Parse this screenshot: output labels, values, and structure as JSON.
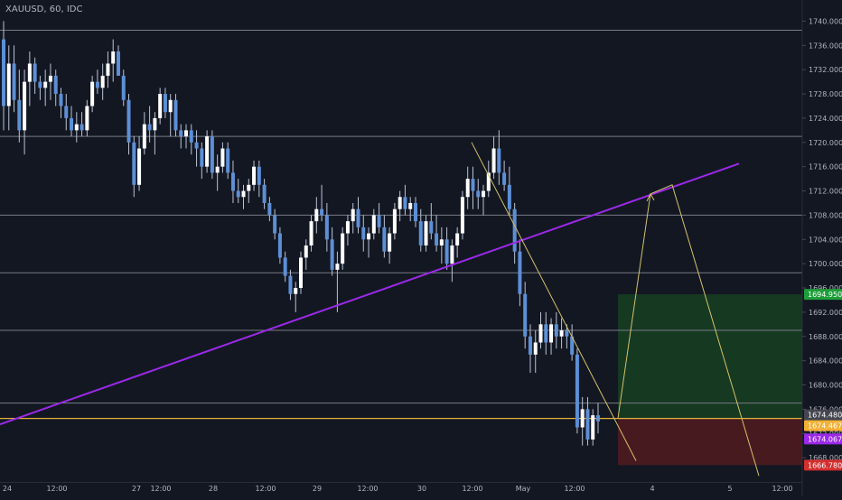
{
  "header": {
    "symbol": "XAUUSD, 60, IDC"
  },
  "colors": {
    "background": "#131722",
    "bull_candle": "#ffffff",
    "bear_candle": "#5d8fd6",
    "wick": "#b9c2d6",
    "trendline": "#9b29e8",
    "thin_line": "#d4c26a",
    "hline": "#787b86",
    "hline_orange": "#e3b23c",
    "long_target_zone": "#163b22",
    "long_stop_zone": "#4a1a21",
    "label_green": "#1e9e3a",
    "label_red": "#d32f2f",
    "label_purple": "#9b29e8",
    "label_orange": "#f2b035",
    "label_grey": "#43464f"
  },
  "chart_data": {
    "type": "candlestick",
    "symbol": "XAUUSD",
    "interval": "60",
    "source": "IDC",
    "ylim": [
      1664,
      1742
    ],
    "y_ticks": [
      "1740.0000",
      "1736.0000",
      "1732.0000",
      "1728.0000",
      "1724.0000",
      "1720.0000",
      "1716.0000",
      "1712.0000",
      "1708.0000",
      "1704.0000",
      "1700.0000",
      "1696.0000",
      "1692.0000",
      "1688.0000",
      "1684.0000",
      "1680.0000",
      "1676.0000",
      "1672.0000",
      "1668.0000"
    ],
    "x_ticks": [
      "24",
      "12:00",
      "27",
      "12:00",
      "28",
      "12:00",
      "29",
      "12:00",
      "30",
      "12:00",
      "May",
      "12:00",
      "4",
      "5",
      "12:00"
    ],
    "candles": [
      [
        1737,
        1740,
        1722,
        1726
      ],
      [
        1726,
        1736,
        1722,
        1733
      ],
      [
        1733,
        1736,
        1725,
        1727
      ],
      [
        1727,
        1732,
        1720,
        1722
      ],
      [
        1722,
        1732,
        1718,
        1730
      ],
      [
        1730,
        1735,
        1726,
        1733
      ],
      [
        1733,
        1734,
        1728,
        1730
      ],
      [
        1730,
        1731,
        1727,
        1729
      ],
      [
        1729,
        1732,
        1726,
        1730
      ],
      [
        1730,
        1733,
        1727,
        1731
      ],
      [
        1731,
        1732,
        1726,
        1728
      ],
      [
        1728,
        1729,
        1724,
        1726
      ],
      [
        1726,
        1728,
        1722,
        1724
      ],
      [
        1724,
        1726,
        1721,
        1722
      ],
      [
        1722,
        1725,
        1720,
        1723
      ],
      [
        1723,
        1725,
        1721,
        1722
      ],
      [
        1722,
        1727,
        1721,
        1726
      ],
      [
        1726,
        1731,
        1725,
        1730
      ],
      [
        1730,
        1732,
        1728,
        1729
      ],
      [
        1729,
        1733,
        1727,
        1731
      ],
      [
        1731,
        1735,
        1729,
        1733
      ],
      [
        1733,
        1737,
        1730,
        1735
      ],
      [
        1735,
        1736,
        1731,
        1731
      ],
      [
        1731,
        1732,
        1726,
        1727
      ],
      [
        1727,
        1728,
        1718,
        1720
      ],
      [
        1720,
        1721,
        1711,
        1713
      ],
      [
        1713,
        1721,
        1712,
        1719
      ],
      [
        1719,
        1725,
        1718,
        1723
      ],
      [
        1723,
        1726,
        1720,
        1722
      ],
      [
        1722,
        1725,
        1718,
        1724
      ],
      [
        1724,
        1729,
        1723,
        1728
      ],
      [
        1728,
        1729,
        1724,
        1725
      ],
      [
        1725,
        1728,
        1721,
        1727
      ],
      [
        1727,
        1728,
        1721,
        1722
      ],
      [
        1722,
        1723,
        1719,
        1721
      ],
      [
        1721,
        1723,
        1719,
        1722
      ],
      [
        1722,
        1723,
        1718,
        1720
      ],
      [
        1720,
        1722,
        1716,
        1719
      ],
      [
        1719,
        1720,
        1714,
        1716
      ],
      [
        1716,
        1722,
        1715,
        1721
      ],
      [
        1721,
        1722,
        1714,
        1715
      ],
      [
        1715,
        1718,
        1712,
        1716
      ],
      [
        1716,
        1720,
        1715,
        1719
      ],
      [
        1719,
        1720,
        1714,
        1715
      ],
      [
        1715,
        1717,
        1710,
        1712
      ],
      [
        1712,
        1714,
        1710,
        1711
      ],
      [
        1711,
        1713,
        1709,
        1712
      ],
      [
        1712,
        1714,
        1710,
        1713
      ],
      [
        1713,
        1717,
        1712,
        1716
      ],
      [
        1716,
        1717,
        1711,
        1713
      ],
      [
        1713,
        1714,
        1709,
        1710
      ],
      [
        1710,
        1711,
        1707,
        1708
      ],
      [
        1708,
        1709,
        1704,
        1705
      ],
      [
        1705,
        1706,
        1700,
        1701
      ],
      [
        1701,
        1702,
        1697,
        1698
      ],
      [
        1698,
        1699,
        1694,
        1695
      ],
      [
        1695,
        1697,
        1692,
        1696
      ],
      [
        1696,
        1702,
        1695,
        1701
      ],
      [
        1701,
        1704,
        1699,
        1703
      ],
      [
        1703,
        1708,
        1702,
        1707
      ],
      [
        1707,
        1711,
        1705,
        1709
      ],
      [
        1709,
        1713,
        1707,
        1708
      ],
      [
        1708,
        1710,
        1702,
        1704
      ],
      [
        1704,
        1706,
        1698,
        1699
      ],
      [
        1699,
        1702,
        1692,
        1700
      ],
      [
        1700,
        1706,
        1699,
        1705
      ],
      [
        1705,
        1708,
        1703,
        1707
      ],
      [
        1707,
        1710,
        1705,
        1709
      ],
      [
        1709,
        1711,
        1705,
        1706
      ],
      [
        1706,
        1708,
        1702,
        1704
      ],
      [
        1704,
        1706,
        1701,
        1705
      ],
      [
        1705,
        1709,
        1704,
        1708
      ],
      [
        1708,
        1710,
        1705,
        1706
      ],
      [
        1706,
        1708,
        1701,
        1702
      ],
      [
        1702,
        1706,
        1700,
        1705
      ],
      [
        1705,
        1710,
        1704,
        1709
      ],
      [
        1709,
        1712,
        1707,
        1711
      ],
      [
        1711,
        1713,
        1708,
        1709
      ],
      [
        1709,
        1711,
        1707,
        1710
      ],
      [
        1710,
        1711,
        1706,
        1707
      ],
      [
        1707,
        1709,
        1702,
        1703
      ],
      [
        1703,
        1708,
        1702,
        1707
      ],
      [
        1707,
        1710,
        1704,
        1705
      ],
      [
        1705,
        1708,
        1702,
        1703
      ],
      [
        1703,
        1706,
        1700,
        1704
      ],
      [
        1704,
        1706,
        1699,
        1700
      ],
      [
        1700,
        1704,
        1697,
        1703
      ],
      [
        1703,
        1706,
        1701,
        1705
      ],
      [
        1705,
        1712,
        1704,
        1711
      ],
      [
        1711,
        1716,
        1709,
        1714
      ],
      [
        1714,
        1716,
        1709,
        1712
      ],
      [
        1712,
        1714,
        1709,
        1711
      ],
      [
        1711,
        1713,
        1708,
        1712
      ],
      [
        1712,
        1717,
        1711,
        1715
      ],
      [
        1715,
        1721,
        1714,
        1719
      ],
      [
        1719,
        1722,
        1713,
        1715
      ],
      [
        1715,
        1717,
        1712,
        1713
      ],
      [
        1713,
        1716,
        1708,
        1709
      ],
      [
        1709,
        1710,
        1700,
        1702
      ],
      [
        1702,
        1704,
        1693,
        1695
      ],
      [
        1695,
        1697,
        1686,
        1688
      ],
      [
        1688,
        1690,
        1682,
        1685
      ],
      [
        1685,
        1689,
        1682,
        1687
      ],
      [
        1687,
        1692,
        1686,
        1690
      ],
      [
        1690,
        1692,
        1685,
        1687
      ],
      [
        1687,
        1691,
        1685,
        1690
      ],
      [
        1690,
        1692,
        1686,
        1688
      ],
      [
        1688,
        1691,
        1686,
        1689
      ],
      [
        1689,
        1690,
        1686,
        1688
      ],
      [
        1688,
        1690,
        1684,
        1685
      ],
      [
        1685,
        1686,
        1672,
        1673
      ],
      [
        1673,
        1678,
        1670,
        1676
      ],
      [
        1676,
        1678,
        1670,
        1671
      ],
      [
        1671,
        1676,
        1670,
        1675
      ],
      [
        1675,
        1677,
        1672,
        1674
      ]
    ],
    "horizontal_lines": [
      1738.5,
      1721,
      1708,
      1698.5,
      1689,
      1677
    ],
    "orange_line": 1674.48,
    "trendline": {
      "from": [
        "24",
        1673.5
      ],
      "to": [
        "5",
        1716.5
      ]
    },
    "long_position": {
      "entry": 1674.48,
      "target": 1694.95,
      "stop": 1666.78
    },
    "projection_path": [
      [
        1674.5
      ],
      [
        1711.5
      ],
      [
        1713.0
      ],
      [
        1665.0
      ]
    ],
    "price_labels": [
      {
        "text": "1694.9500",
        "value": 1694.95,
        "color_key": "label_green"
      },
      {
        "text": "1674.4800",
        "value": 1674.48,
        "color_key": "label_grey"
      },
      {
        "text": "1674.4670",
        "value": 1674.467,
        "color_key": "label_orange"
      },
      {
        "text": "1674.0670",
        "value": 1674.067,
        "color_key": "label_purple"
      },
      {
        "text": "1666.7800",
        "value": 1666.78,
        "color_key": "label_red"
      }
    ]
  }
}
